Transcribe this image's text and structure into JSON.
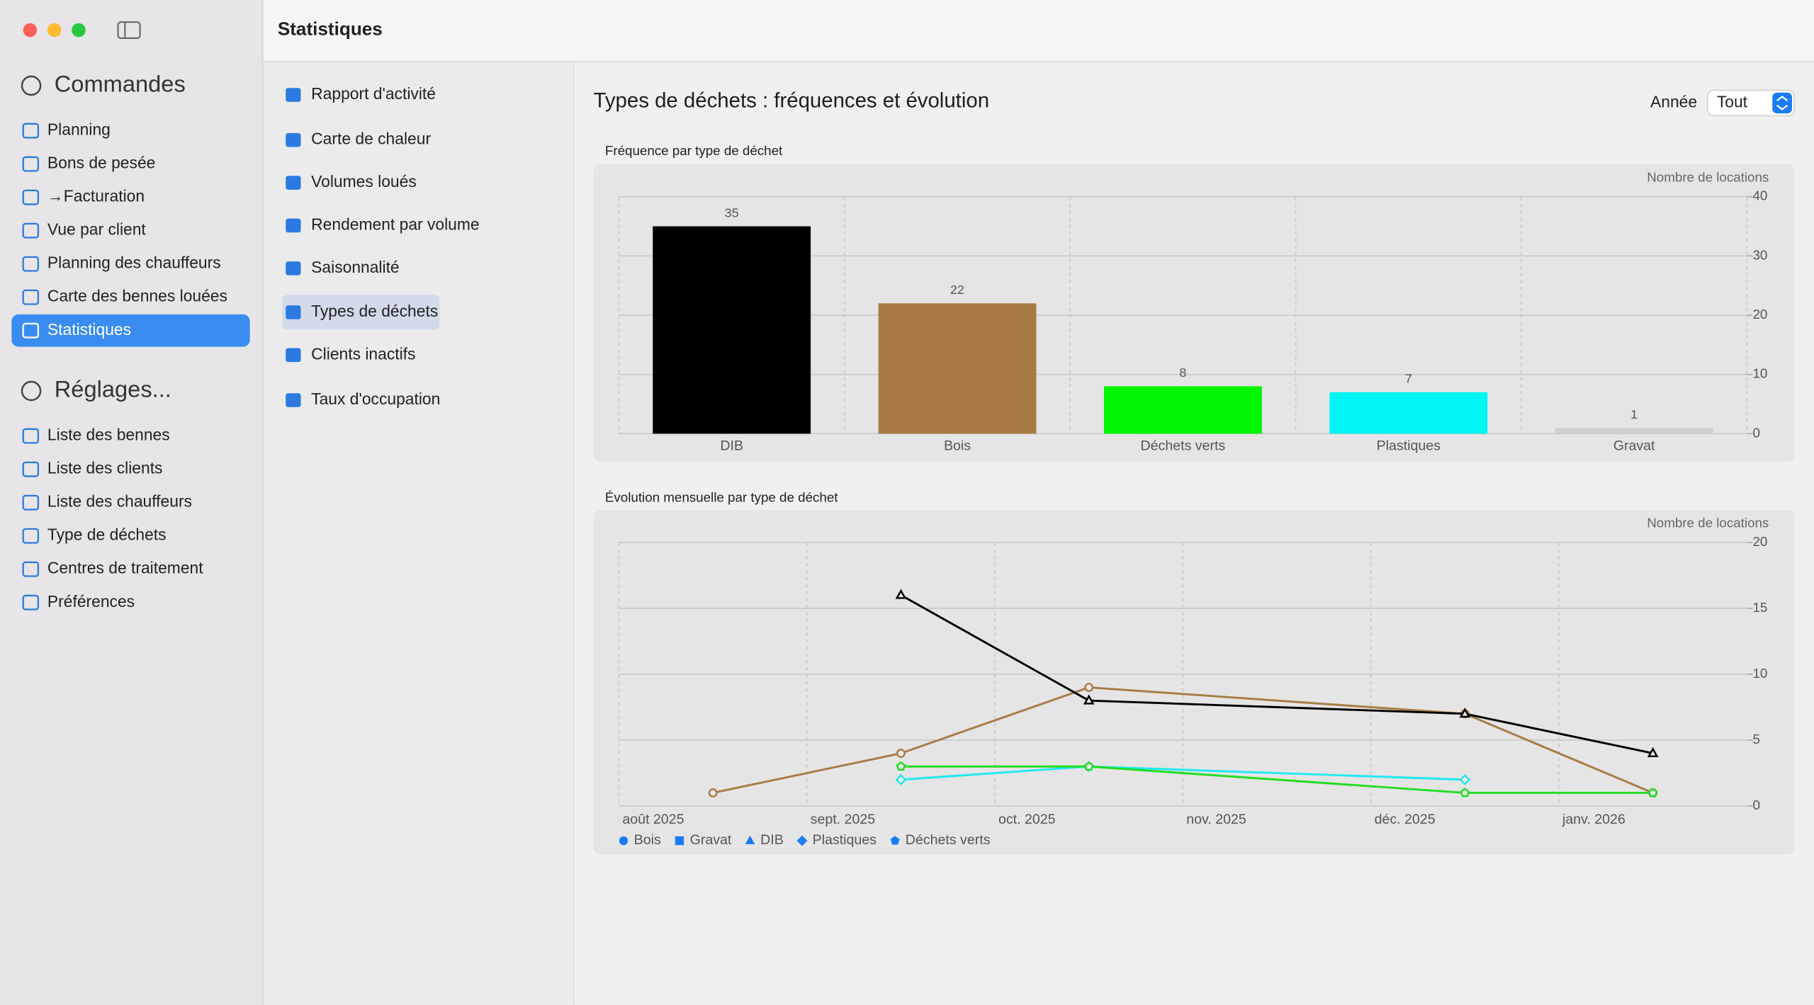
{
  "window": {
    "title": "Statistiques"
  },
  "sidebar": {
    "sections": [
      {
        "title": "Commandes",
        "items": [
          "Planning",
          "Bons de pesée",
          "→Facturation",
          "Vue par client",
          "Planning des chauffeurs",
          "Carte des bennes louées",
          "Statistiques"
        ],
        "selected": 6
      },
      {
        "title": "Réglages...",
        "items": [
          "Liste des bennes",
          "Liste des clients",
          "Liste des chauffeurs",
          "Type de déchets",
          "Centres de traitement",
          "Préférences"
        ]
      }
    ]
  },
  "subnav": {
    "items": [
      "Rapport d'activité",
      "Carte de chaleur",
      "Volumes loués",
      "Rendement par volume",
      "Saisonnalité",
      "Types de déchets",
      "Clients inactifs",
      "Taux d'occupation"
    ],
    "selected": 5
  },
  "header": {
    "title": "Types de déchets : fréquences et évolution",
    "filter_label": "Année",
    "filter_value": "Tout"
  },
  "chart_data": [
    {
      "type": "bar",
      "title": "Fréquence par type de déchet",
      "y_label": "Nombre de locations",
      "categories": [
        "DIB",
        "Bois",
        "Déchets verts",
        "Plastiques",
        "Gravat"
      ],
      "values": [
        35,
        22,
        8,
        7,
        1
      ],
      "colors": [
        "#000000",
        "#a87b45",
        "#00f500",
        "#00f5f5",
        "#cfcfcf"
      ],
      "ylim": [
        0,
        40
      ],
      "yticks": [
        0,
        10,
        20,
        30,
        40
      ],
      "grid": true
    },
    {
      "type": "line",
      "title": "Évolution mensuelle par type de déchet",
      "y_label": "Nombre de locations",
      "xlim": [
        "2025-08",
        "2026-02"
      ],
      "xticks": [
        {
          "value": "2025-08",
          "label": "août 2025"
        },
        {
          "value": "2025-09",
          "label": "sept. 2025"
        },
        {
          "value": "2025-10",
          "label": "oct. 2025"
        },
        {
          "value": "2025-11",
          "label": "nov. 2025"
        },
        {
          "value": "2025-12",
          "label": "déc. 2025"
        },
        {
          "value": "2026-01",
          "label": "janv. 2026"
        }
      ],
      "ylim": [
        0,
        20
      ],
      "yticks": [
        0,
        5,
        10,
        15,
        20
      ],
      "grid": true,
      "legend_color": "#1a7cf5",
      "series": [
        {
          "name": "Bois",
          "color": "#a87b45",
          "symbol": "circle",
          "x": [
            "2025-08",
            "2025-09",
            "2025-10",
            "2025-12",
            "2026-01"
          ],
          "values": [
            1,
            4,
            9,
            7,
            1
          ]
        },
        {
          "name": "Gravat",
          "color": "#bbbbbb",
          "symbol": "square",
          "x": [],
          "values": []
        },
        {
          "name": "DIB",
          "color": "#000000",
          "symbol": "triangle",
          "x": [
            "2025-09",
            "2025-10",
            "2025-12",
            "2026-01"
          ],
          "values": [
            16,
            8,
            7,
            4
          ]
        },
        {
          "name": "Plastiques",
          "color": "#22e8f0",
          "symbol": "diamond",
          "x": [
            "2025-09",
            "2025-10",
            "2025-12"
          ],
          "values": [
            2,
            3,
            2
          ]
        },
        {
          "name": "Déchets verts",
          "color": "#22dd22",
          "symbol": "pentagon",
          "x": [
            "2025-09",
            "2025-10",
            "2025-12",
            "2026-01"
          ],
          "values": [
            3,
            3,
            1,
            1
          ]
        }
      ]
    }
  ]
}
